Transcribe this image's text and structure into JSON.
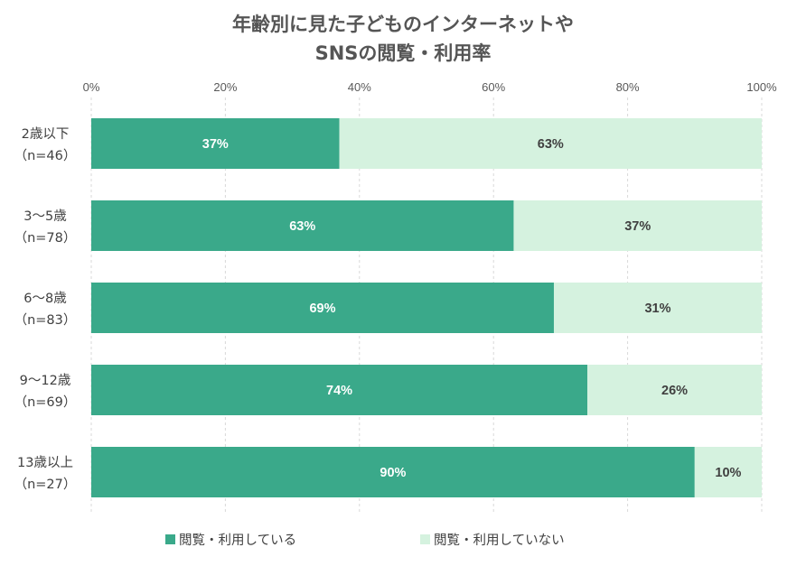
{
  "chart_data": {
    "type": "bar",
    "orientation": "horizontal",
    "stacked": true,
    "title_lines": [
      "年齢別に見た子どものインターネットや",
      "SNSの閲覧・利用率"
    ],
    "categories": [
      [
        "2歳以下",
        "（n=46）"
      ],
      [
        "3～5歳",
        "（n=78）"
      ],
      [
        "6～8歳",
        "（n=83）"
      ],
      [
        "9～12歳",
        "（n=69）"
      ],
      [
        "13歳以上",
        "（n=27）"
      ]
    ],
    "series": [
      {
        "name": "閲覧・利用している",
        "color": "#3aa98a",
        "values": [
          37,
          63,
          69,
          74,
          90
        ]
      },
      {
        "name": "閲覧・利用していない",
        "color": "#d5f2df",
        "values": [
          63,
          37,
          31,
          26,
          10
        ]
      }
    ],
    "xlim": [
      0,
      100
    ],
    "xticks": [
      "0%",
      "20%",
      "40%",
      "60%",
      "80%",
      "100%"
    ],
    "value_suffix": "%",
    "grid": true,
    "legend_position": "bottom"
  }
}
